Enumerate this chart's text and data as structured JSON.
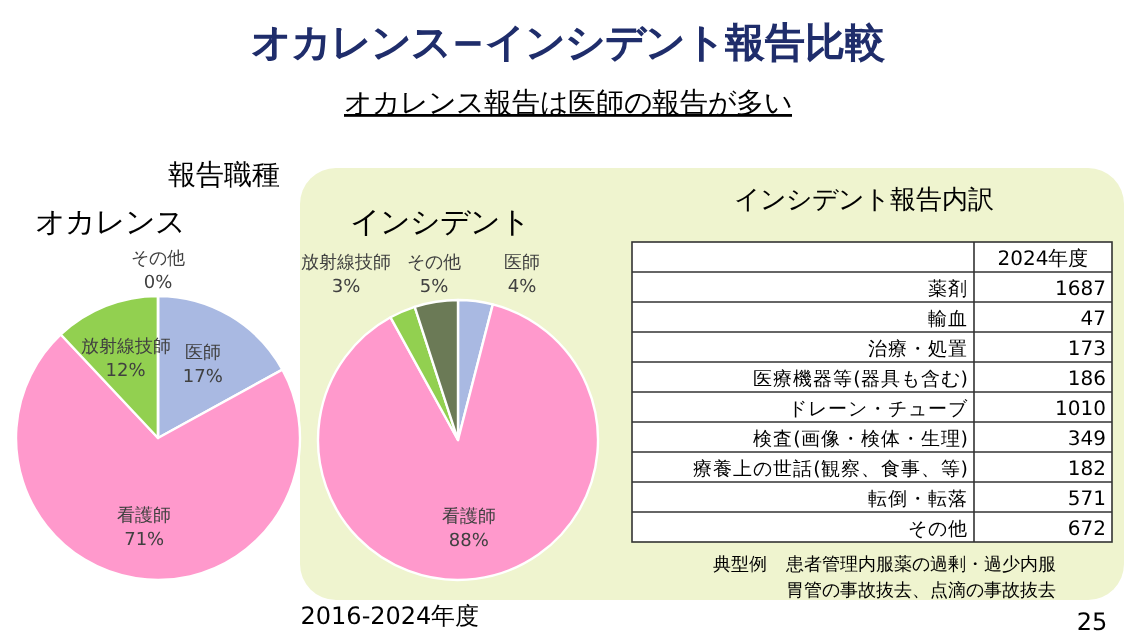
{
  "chart_data": [
    {
      "type": "pie",
      "title": "オカレンス",
      "categories": [
        "医師",
        "看護師",
        "放射線技師",
        "その他"
      ],
      "values": [
        17,
        71,
        12,
        0
      ],
      "colors": [
        "#a9b9e2",
        "#ff99cc",
        "#92d050",
        "#a6a6a6"
      ],
      "value_labels": [
        "17%",
        "71%",
        "12%",
        "0%"
      ],
      "annotations": [
        "オカレンス−インシデント報告比較",
        "オカレンス報告は医師の報告が多い",
        "報告職種",
        "2016-2024年度",
        "25"
      ]
    },
    {
      "type": "pie",
      "title": "インシデント",
      "categories": [
        "医師",
        "看護師",
        "放射線技師",
        "その他"
      ],
      "values": [
        4,
        88,
        3,
        5
      ],
      "colors": [
        "#a9b9e2",
        "#ff99cc",
        "#92d050",
        "#6b7a56"
      ],
      "value_labels": [
        "4%",
        "88%",
        "3%",
        "5%"
      ]
    },
    {
      "type": "other",
      "title": "インシデント報告内訳",
      "categories": [
        "薬剤",
        "輸血",
        "治療・処置",
        "医療機器等(器具も含む)",
        "ドレーン・チューブ",
        "検査(画像・検体・生理)",
        "療養上の世話(観察、食事、等)",
        "転倒・転落",
        "その他"
      ],
      "series": [
        {
          "name": "2024年度",
          "values": [
            1687,
            47,
            173,
            186,
            1010,
            349,
            182,
            571,
            672
          ]
        }
      ],
      "data_labels": true,
      "annotations": [
        "典型例",
        "患者管理内服薬の過剰・過少内服",
        "胃管の事故抜去、点滴の事故抜去"
      ]
    }
  ]
}
